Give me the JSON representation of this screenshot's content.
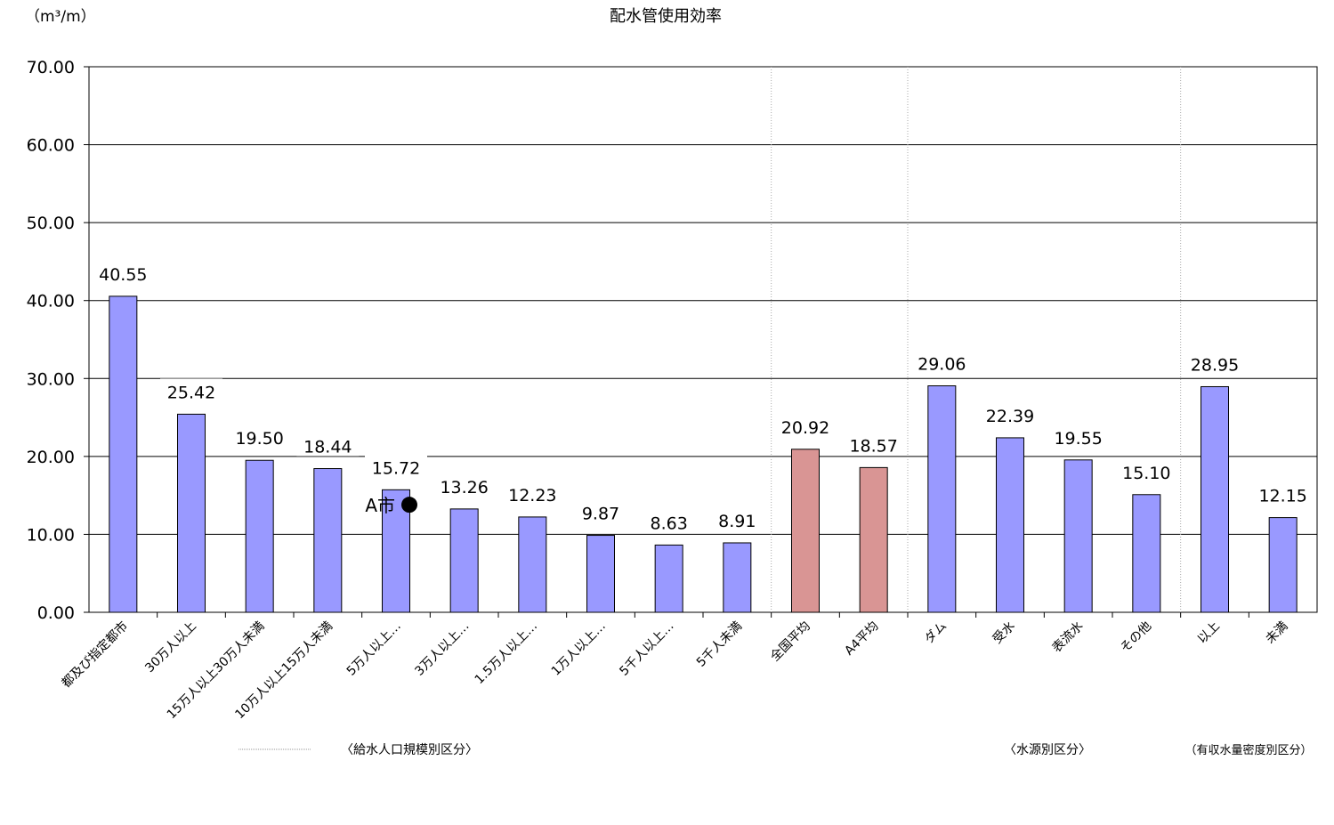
{
  "chart_data": {
    "type": "bar",
    "title": "配水管使用効率",
    "unit_label": "（m³/m）",
    "ylim": [
      0,
      70
    ],
    "yticks": [
      "0.00",
      "10.00",
      "20.00",
      "30.00",
      "40.00",
      "50.00",
      "60.00",
      "70.00"
    ],
    "grid": true,
    "categories": [
      "都及び指定都市",
      "30万人以上",
      "15万人以上30万人未満",
      "10万人以上15万人未満",
      "5万人以上…",
      "3万人以上…",
      "1.5万人以上…",
      "1万人以上…",
      "5千人以上…",
      "5千人未満",
      "全国平均",
      "A4平均",
      "ダム",
      "受水",
      "表流水",
      "その他",
      "以上",
      "未満"
    ],
    "values": [
      40.55,
      25.42,
      19.5,
      18.44,
      15.72,
      13.26,
      12.23,
      9.87,
      8.63,
      8.91,
      20.92,
      18.57,
      29.06,
      22.39,
      19.55,
      15.1,
      28.95,
      12.15
    ],
    "value_labels": [
      "40.55",
      "25.42",
      "19.50",
      "18.44",
      "15.72",
      "13.26",
      "12.23",
      "9.87",
      "8.63",
      "8.91",
      "20.92",
      "18.57",
      "29.06",
      "22.39",
      "19.55",
      "15.10",
      "28.95",
      "12.15"
    ],
    "bar_colors": [
      "#9999ff",
      "#9999ff",
      "#9999ff",
      "#9999ff",
      "#9999ff",
      "#9999ff",
      "#9999ff",
      "#9999ff",
      "#9999ff",
      "#9999ff",
      "#d99594",
      "#d99594",
      "#9999ff",
      "#9999ff",
      "#9999ff",
      "#9999ff",
      "#9999ff",
      "#9999ff"
    ],
    "group_labels": [
      "〈給水人口規模別区分〉",
      "〈水源別区分〉",
      "（有収水量密度別区分）"
    ],
    "marker": {
      "label": "A市",
      "category_index": 4,
      "value": 13.8
    }
  }
}
